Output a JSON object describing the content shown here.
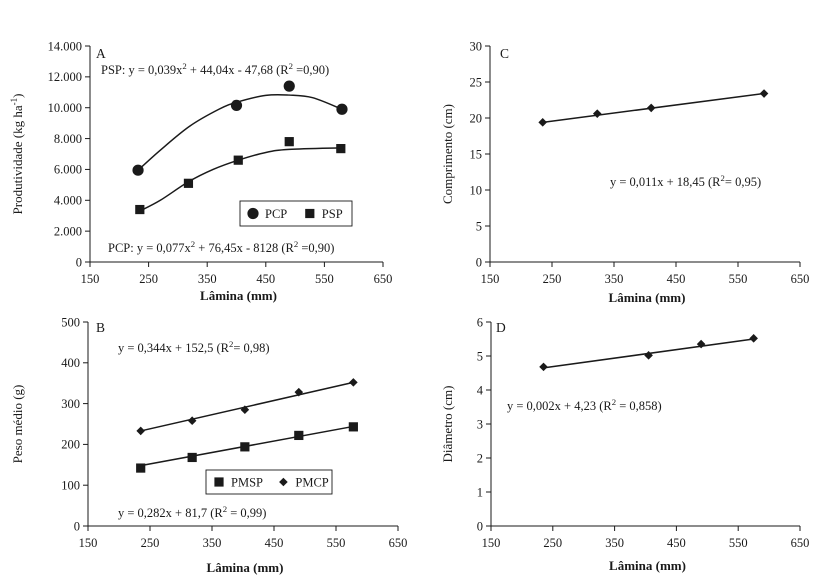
{
  "chart_data": [
    {
      "panel": "A",
      "type": "scatter",
      "xlabel": "Lâmina (mm)",
      "ylabel": "Produtividade (kg ha",
      "ylabel_sup": "-1",
      "ylabel_close": ")",
      "xlim": [
        150,
        650
      ],
      "ylim": [
        0,
        14000
      ],
      "xticks": [
        150,
        250,
        350,
        450,
        550,
        650
      ],
      "xtick_labels": [
        "150",
        "250",
        "350",
        "450",
        "550",
        "650"
      ],
      "yticks": [
        0,
        2000,
        4000,
        6000,
        8000,
        10000,
        12000,
        14000
      ],
      "ytick_labels": [
        "0",
        "2.000",
        "4.000",
        "6.000",
        "8.000",
        "10.000",
        "12.000",
        "14.000"
      ],
      "legend_position": "lower-right",
      "series": [
        {
          "name": "PCP",
          "marker": "circle",
          "x": [
            232,
            400,
            490,
            580
          ],
          "y": [
            5950,
            10150,
            11400,
            9900
          ],
          "fit": "curve",
          "fit_points": [
            [
              232,
              5950
            ],
            [
              270,
              7250
            ],
            [
              320,
              8800
            ],
            [
              370,
              9900
            ],
            [
              400,
              10350
            ],
            [
              450,
              10800
            ],
            [
              490,
              10820
            ],
            [
              530,
              10650
            ],
            [
              580,
              9900
            ]
          ]
        },
        {
          "name": "PSP",
          "marker": "square",
          "x": [
            235,
            318,
            403,
            490,
            578
          ],
          "y": [
            3400,
            5100,
            6600,
            7800,
            7350
          ],
          "fit": "curve",
          "fit_points": [
            [
              235,
              3300
            ],
            [
              270,
              4000
            ],
            [
              318,
              5200
            ],
            [
              360,
              6000
            ],
            [
              403,
              6600
            ],
            [
              450,
              7100
            ],
            [
              490,
              7300
            ],
            [
              578,
              7400
            ]
          ]
        }
      ],
      "annotations": [
        {
          "prefix": "PSP: y = 0,039x",
          "sup": "2",
          "suffix": " + 44,04x - 47,68 (R",
          "sup2": "2",
          "suffix2": " =0,90)"
        },
        {
          "prefix": "PCP: y = 0,077x",
          "sup": "2",
          "suffix": " + 76,45x - 8128 (R",
          "sup2": "2",
          "suffix2": " =0,90)"
        }
      ]
    },
    {
      "panel": "C",
      "type": "scatter",
      "xlabel": "Lâmina (mm)",
      "ylabel": "Comprimento (cm)",
      "xlim": [
        150,
        650
      ],
      "ylim": [
        0,
        30
      ],
      "xticks": [
        150,
        250,
        350,
        450,
        550,
        650
      ],
      "xtick_labels": [
        "150",
        "250",
        "350",
        "450",
        "550",
        "650"
      ],
      "yticks": [
        0,
        5,
        10,
        15,
        20,
        25,
        30
      ],
      "ytick_labels": [
        "0",
        "5",
        "10",
        "15",
        "20",
        "25",
        "30"
      ],
      "series": [
        {
          "name": "",
          "marker": "diamond",
          "x": [
            235,
            323,
            410,
            592
          ],
          "y": [
            19.4,
            20.6,
            21.4,
            23.4
          ],
          "fit": "line",
          "fit_points": [
            [
              235,
              19.4
            ],
            [
              592,
              23.4
            ]
          ]
        }
      ],
      "annotations": [
        {
          "prefix": "y = 0,011x + 18,45  (R",
          "sup": "2",
          "suffix": "= 0,95)"
        }
      ]
    },
    {
      "panel": "B",
      "type": "scatter",
      "xlabel": "Lâmina (mm)",
      "ylabel": "Peso médio (g)",
      "xlim": [
        150,
        650
      ],
      "ylim": [
        0,
        500
      ],
      "xticks": [
        150,
        250,
        350,
        450,
        550,
        650
      ],
      "xtick_labels": [
        "150",
        "250",
        "350",
        "450",
        "550",
        "650"
      ],
      "yticks": [
        0,
        100,
        200,
        300,
        400,
        500
      ],
      "ytick_labels": [
        "0",
        "100",
        "200",
        "300",
        "400",
        "500"
      ],
      "legend_position": "lower-left",
      "series": [
        {
          "name": "PMSP",
          "marker": "square",
          "x": [
            235,
            318,
            403,
            490,
            578
          ],
          "y": [
            142,
            168,
            194,
            222,
            243
          ],
          "fit": "line",
          "fit_points": [
            [
              235,
              148
            ],
            [
              578,
              244
            ]
          ]
        },
        {
          "name": "PMCP",
          "marker": "diamond",
          "x": [
            235,
            318,
            403,
            490,
            578
          ],
          "y": [
            233,
            258,
            285,
            328,
            352
          ],
          "fit": "line",
          "fit_points": [
            [
              235,
              233
            ],
            [
              578,
              352
            ]
          ]
        }
      ],
      "annotations": [
        {
          "prefix": "y = 0,344x + 152,5 (R",
          "sup": "2",
          "suffix": "= 0,98)"
        },
        {
          "prefix": "y = 0,282x + 81,7 (R",
          "sup": "2",
          "suffix": " = 0,99)"
        }
      ]
    },
    {
      "panel": "D",
      "type": "scatter",
      "xlabel": "Lâmina (mm)",
      "ylabel": "Diâmetro (cm)",
      "xlim": [
        150,
        650
      ],
      "ylim": [
        0,
        6
      ],
      "xticks": [
        150,
        250,
        350,
        450,
        550,
        650
      ],
      "xtick_labels": [
        "150",
        "250",
        "350",
        "450",
        "550",
        "650"
      ],
      "yticks": [
        0,
        1,
        2,
        3,
        4,
        5,
        6
      ],
      "ytick_labels": [
        "0",
        "1",
        "2",
        "3",
        "4",
        "5",
        "6"
      ],
      "series": [
        {
          "name": "",
          "marker": "diamond",
          "x": [
            235,
            405,
            490,
            575
          ],
          "y": [
            4.68,
            5.02,
            5.35,
            5.52
          ],
          "fit": "line",
          "fit_points": [
            [
              235,
              4.65
            ],
            [
              575,
              5.5
            ]
          ]
        }
      ],
      "annotations": [
        {
          "prefix": "y = 0,002x + 4,23 (R",
          "sup": "2",
          "suffix": " = 0,858)"
        }
      ]
    }
  ]
}
